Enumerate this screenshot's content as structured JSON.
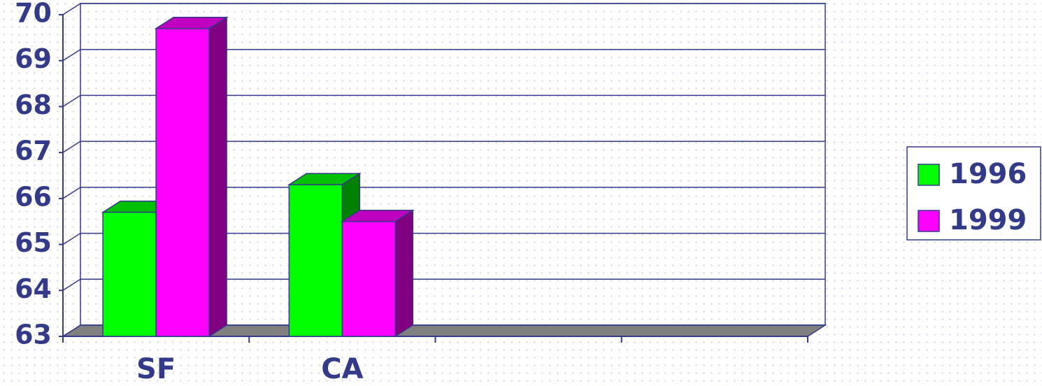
{
  "chart_data": {
    "type": "bar",
    "categories": [
      "SF",
      "CA",
      null,
      null
    ],
    "series": [
      {
        "name": "1996",
        "color": "#00ff00",
        "values": [
          65.7,
          66.3,
          null,
          null
        ]
      },
      {
        "name": "1999",
        "color": "#ff00ff",
        "values": [
          69.7,
          65.5,
          null,
          null
        ]
      }
    ],
    "ylim": [
      63,
      70
    ],
    "yticks": [
      63,
      64,
      65,
      66,
      67,
      68,
      69,
      70
    ],
    "grid": true,
    "legend": "right"
  }
}
